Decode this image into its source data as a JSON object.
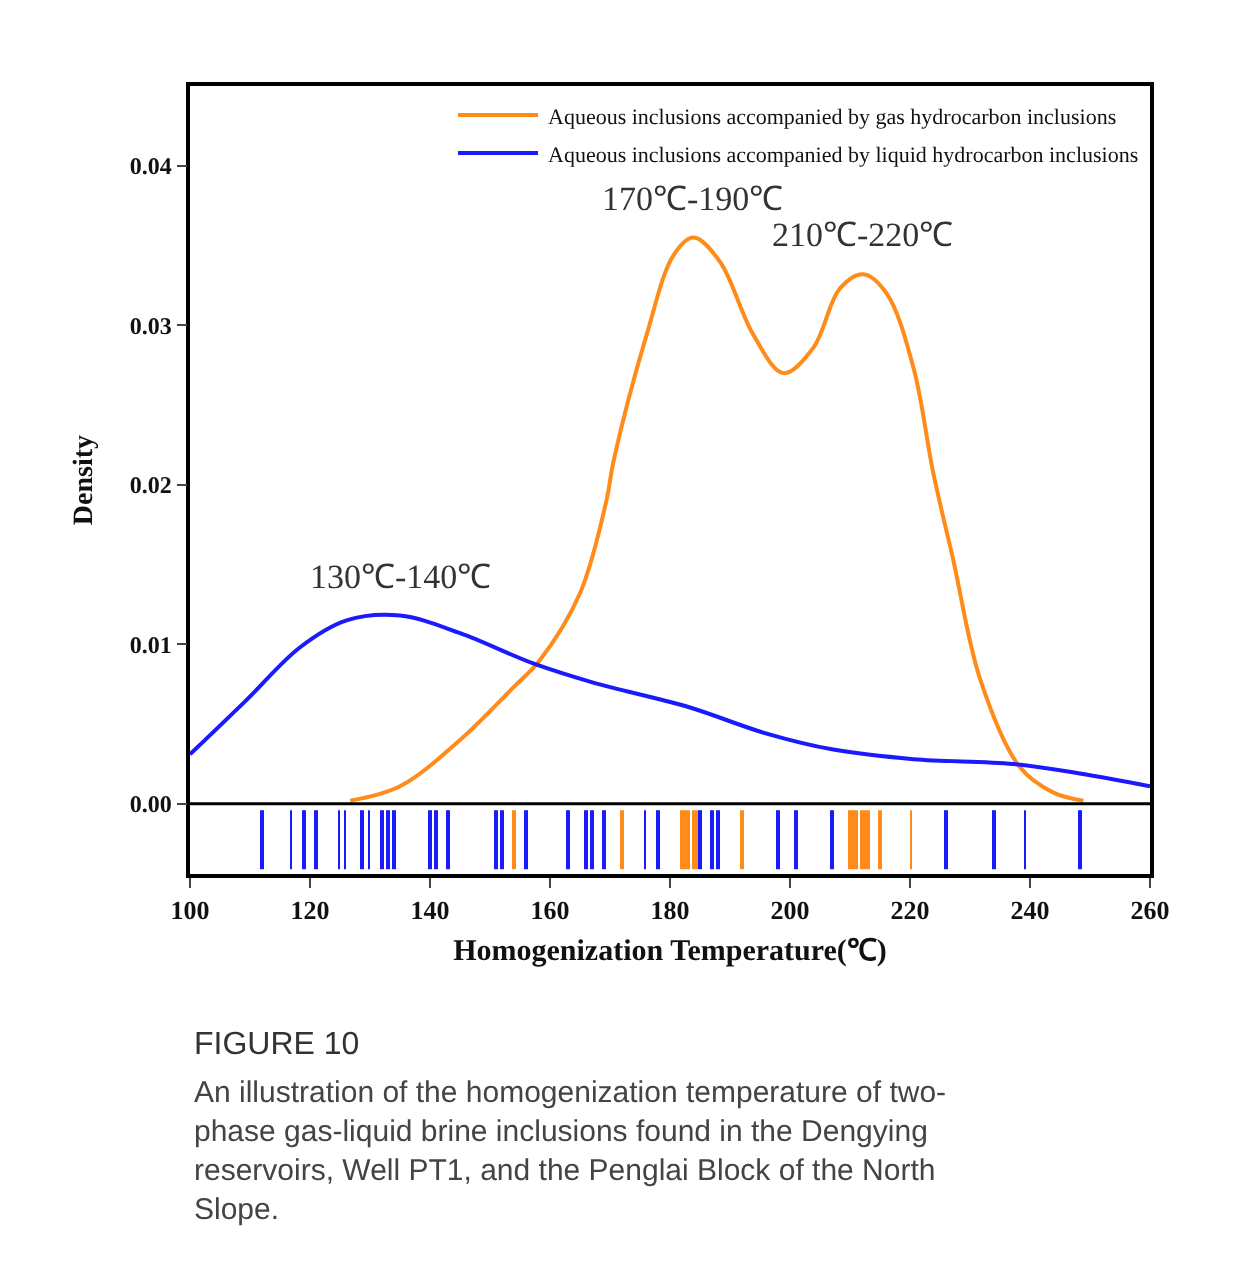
{
  "chart_data": {
    "type": "line",
    "xlabel": "Homogenization Temperature(℃)",
    "ylabel": "Density",
    "xlim": [
      100,
      260
    ],
    "xticks": [
      100,
      120,
      140,
      160,
      180,
      200,
      220,
      240,
      260
    ],
    "ylim": [
      -0.0044,
      0.045
    ],
    "yticks": [
      {
        "value": 0,
        "label": "0.00"
      },
      {
        "value": 0.01,
        "label": "0.01"
      },
      {
        "value": 0.02,
        "label": "0.02"
      },
      {
        "value": 0.03,
        "label": "0.03"
      },
      {
        "value": 0.04,
        "label": "0.04"
      }
    ],
    "legend": "top right",
    "ref_lines": [
      {
        "axis": "y",
        "value": 0,
        "color": "#000000"
      }
    ],
    "series": [
      {
        "name": "Aqueous inclusions accompanied by gas hydrocarbon inclusions",
        "color": "#ff8c1a",
        "x": [
          126.7,
          135,
          145,
          153.9,
          158.3,
          165,
          169.4,
          170.6,
          176.1,
          180.6,
          183.9,
          188.3,
          193.9,
          198.9,
          203.9,
          208.3,
          212.2,
          216.1,
          220.6,
          223.9,
          227.2,
          231.7,
          238.3,
          243.9,
          248.9
        ],
        "values": [
          0.0002,
          0.0011,
          0.004,
          0.0073,
          0.009,
          0.0132,
          0.019,
          0.0215,
          0.0294,
          0.0344,
          0.0355,
          0.034,
          0.0294,
          0.027,
          0.0286,
          0.0323,
          0.0332,
          0.032,
          0.0273,
          0.0207,
          0.0153,
          0.0078,
          0.0023,
          0.0007,
          0.0002
        ]
      },
      {
        "name": "Aqueous inclusions accompanied by liquid hydrocarbon inclusions",
        "color": "#1a1aff",
        "x": [
          100,
          109.4,
          118.3,
          126.1,
          135,
          145,
          157.2,
          167.2,
          182.8,
          196.1,
          207.2,
          220.6,
          237.2,
          248.3,
          260
        ],
        "values": [
          0.0031,
          0.0065,
          0.0098,
          0.0115,
          0.0118,
          0.0107,
          0.0088,
          0.0076,
          0.0061,
          0.0044,
          0.0034,
          0.0028,
          0.0025,
          0.0019,
          0.0011
        ]
      },
      {
        "type": "bar",
        "base": [
          -0.0041,
          -0.0041,
          -0.0041,
          -0.0041,
          -0.0041,
          -0.0041,
          -0.0041,
          -0.0041,
          -0.0041,
          -0.0041,
          -0.0041,
          -0.0041,
          -0.0041,
          -0.0041,
          -0.0041,
          -0.0041,
          -0.0041,
          -0.0041,
          -0.0041,
          -0.0041,
          -0.0041,
          -0.0041,
          -0.0041,
          -0.0041,
          -0.0041,
          -0.0041,
          -0.0041,
          -0.0041,
          -0.0041,
          -0.0041,
          -0.0041,
          -0.0041,
          -0.0041
        ],
        "color": "#1a1aff",
        "x": [
          111.9,
          116.8,
          118.9,
          120.9,
          124.8,
          125.8,
          128.6,
          129.8,
          131.9,
          133.0,
          134.0,
          139.9,
          140.9,
          142.9,
          150.9,
          152.0,
          155.9,
          162.9,
          165.9,
          166.9,
          168.9,
          175.8,
          177.9,
          185.0,
          186.9,
          188.0,
          198.0,
          201.0,
          207.1,
          226.1,
          234.1,
          239.2,
          248.3
        ],
        "values": [
          0.0037,
          0.0037,
          0.0037,
          0.0037,
          0.0037,
          0.0037,
          0.0037,
          0.0037,
          0.0037,
          0.0037,
          0.0037,
          0.0037,
          0.0037,
          0.0037,
          0.0037,
          0.0037,
          0.0037,
          0.0037,
          0.0037,
          0.0037,
          0.0037,
          0.0037,
          0.0037,
          0.0037,
          0.0037,
          0.0037,
          0.0037,
          0.0037,
          0.0037,
          0.0037,
          0.0037,
          0.0037,
          0.0037
        ]
      },
      {
        "type": "bar",
        "base": [
          -0.0041,
          -0.0041,
          -0.0041,
          -0.0041,
          -0.0041,
          -0.0041,
          -0.0041,
          -0.0041,
          -0.0041,
          -0.0041,
          -0.0041,
          -0.0041,
          -0.0041,
          -0.0041,
          -0.0041,
          -0.0041
        ],
        "color": "#ff8c1a",
        "x": [
          153.9,
          171.9,
          181.9,
          182.6,
          183.2,
          183.9,
          184.5,
          191.9,
          209.9,
          210.6,
          211.2,
          211.9,
          212.6,
          213.2,
          214.9,
          220.2
        ],
        "values": [
          0.0037,
          0.0037,
          0.0037,
          0.0037,
          0.0037,
          0.0037,
          0.0037,
          0.0037,
          0.0037,
          0.0037,
          0.0037,
          0.0037,
          0.0037,
          0.0037,
          0.0037,
          0.0037
        ]
      }
    ],
    "annotations": [
      {
        "text": "170℃-190℃",
        "x": 183.9,
        "y": 0.0355
      },
      {
        "text": "210℃-220℃",
        "x": 212.2,
        "y": 0.0332
      },
      {
        "text": "130℃-140℃",
        "x": 135,
        "y": 0.0118
      },
      "FIGURE 10",
      "An illustration of the homogenization temperature of two-phase gas-liquid brine inclusions found in the Dengying reservoirs, Well PT1, and the Penglai Block of the North Slope."
    ]
  }
}
